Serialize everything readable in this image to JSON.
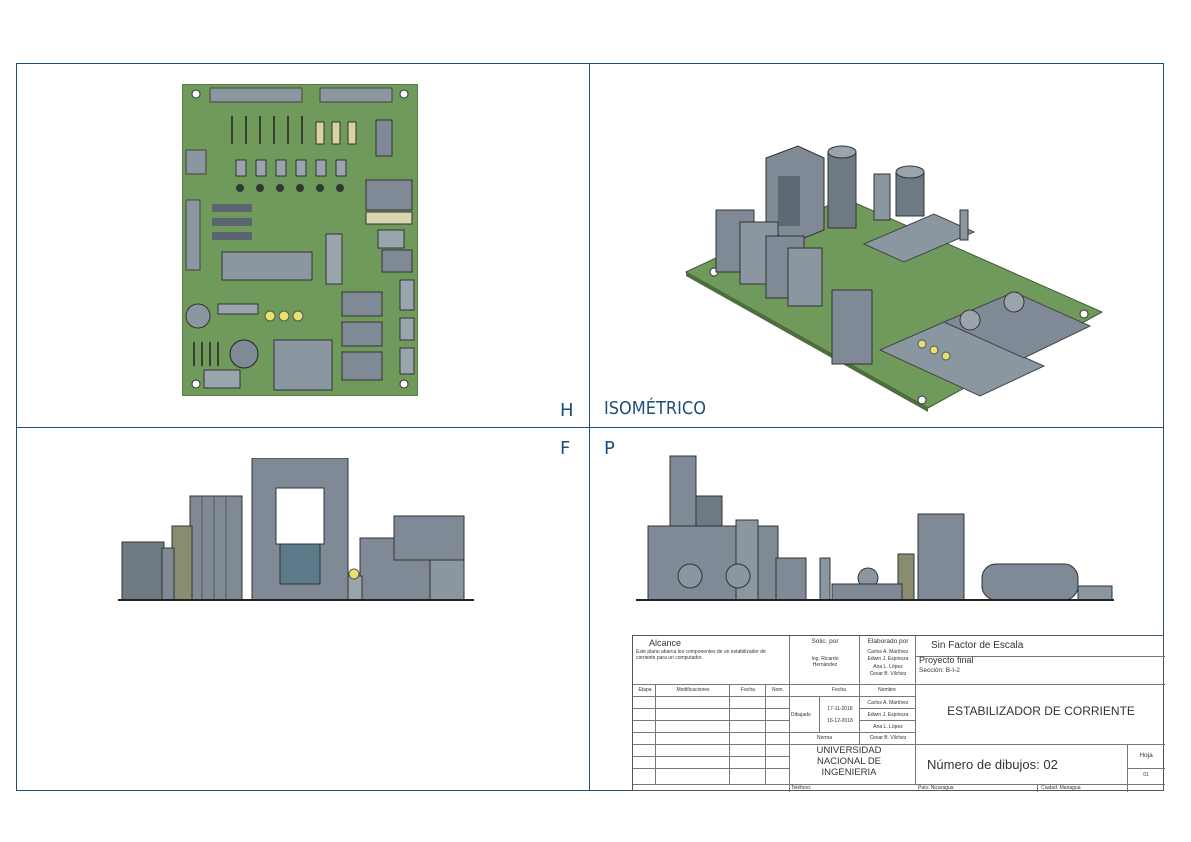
{
  "views": {
    "top_label": "H",
    "iso_label": "ISOMÉTRICO",
    "front_label": "F",
    "side_label": "P"
  },
  "colors": {
    "frame": "#1f4e79",
    "board": "#6f9a5b",
    "component": "#7f8a96"
  },
  "title_block": {
    "alcance_label": "Alcance",
    "alcance_text": "Este plano abarca los componentes de un estabilizador de corriente para un computador.",
    "solic_label": "Solic. por",
    "solic_name": "Ing. Ricardo Hernández",
    "elaborado_label": "Elaborado por",
    "elaborado_names": [
      "Carlos A. Martínez",
      "Edwin J. Espinoza",
      "Ana L. López",
      "Cesar B. Vilchez"
    ],
    "escala": "Sin Factor de Escala",
    "proyecto": "Proyecto final",
    "seccion": "Sección: B-I-2",
    "headers": {
      "etapa": "Etapa",
      "modificaciones": "Modificaciones",
      "fecha": "Fecha",
      "nom": "Nom.",
      "fecha2": "Fecha",
      "nombre": "Nombre"
    },
    "dibujado_label": "Dibujado",
    "norma_label": "Norma",
    "dates": [
      "17-11-2018",
      "16-12-2018"
    ],
    "nombres": [
      "Carlos A. Martínez",
      "Edwin J. Espinoza",
      "Ana L. López",
      "Cesar B. Vilchez"
    ],
    "drawing_title": "ESTABILIZADOR DE CORRIENTE",
    "universidad": "UNIVERSIDAD NACIONAL DE INGENIERIA",
    "numero": "Número de dibujos: 02",
    "hoja_label": "Hoja",
    "hoja_num": "01",
    "telefono": "Teléfono:",
    "pais": "País: Nicaragua",
    "ciudad": "Ciudad: Managua"
  }
}
